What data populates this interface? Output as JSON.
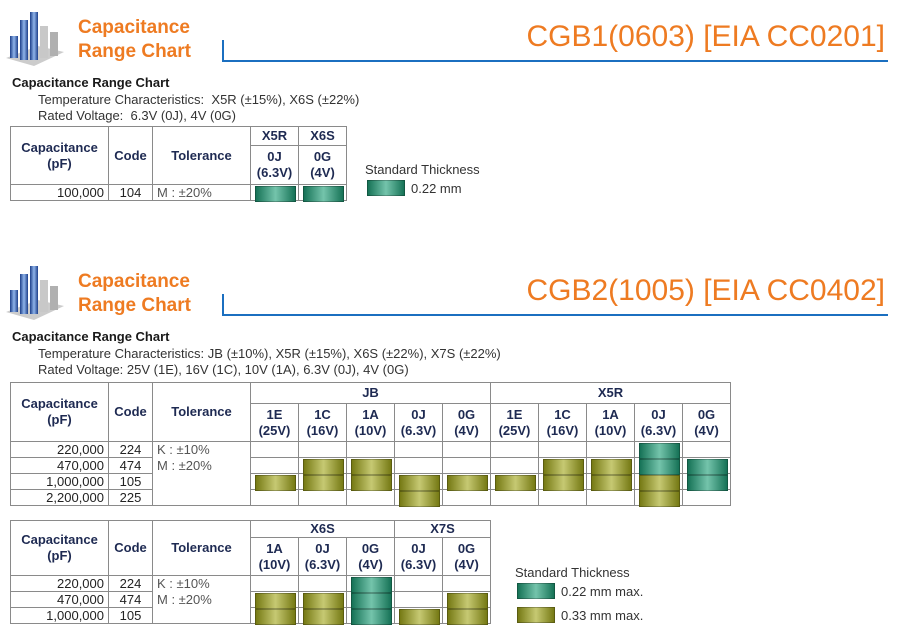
{
  "sections": [
    {
      "header": {
        "title": "Capacitance\nRange Chart",
        "part": "CGB1(0603) [EIA CC0201]"
      },
      "heading": "Capacitance Range Chart",
      "temperature": "Temperature Characteristics:  X5R (±15%), X6S (±22%)",
      "voltage": "Rated Voltage:  6.3V (0J), 4V (0G)",
      "tables": [
        {
          "headers": {
            "capacitance": "Capacitance\n(pF)",
            "code": "Code",
            "tolerance": "Tolerance"
          },
          "groups": [
            {
              "name": "X5R",
              "columns": [
                {
                  "code": "0J",
                  "voltage": "(6.3V)"
                }
              ]
            },
            {
              "name": "X6S",
              "columns": [
                {
                  "code": "0G",
                  "voltage": "(4V)"
                }
              ]
            }
          ],
          "tolerance": [
            "M : ±20%"
          ],
          "rows": [
            {
              "capacitance": "100,000",
              "code": "104",
              "cells": [
                0.22,
                0.22
              ]
            }
          ]
        }
      ],
      "legend": {
        "title": "Standard Thickness",
        "items": [
          {
            "label": "0.22 mm",
            "thickness": 0.22,
            "color": "#1f9f78"
          }
        ]
      }
    },
    {
      "header": {
        "title": "Capacitance\nRange Chart",
        "part": "CGB2(1005) [EIA CC0402]"
      },
      "heading": "Capacitance Range Chart",
      "temperature": "Temperature Characteristics: JB (±10%), X5R (±15%), X6S (±22%), X7S (±22%)",
      "voltage": "Rated Voltage: 25V (1E), 16V (1C), 10V (1A), 6.3V (0J), 4V (0G)",
      "tables": [
        {
          "headers": {
            "capacitance": "Capacitance\n(pF)",
            "code": "Code",
            "tolerance": "Tolerance"
          },
          "groups": [
            {
              "name": "JB",
              "columns": [
                {
                  "code": "1E",
                  "voltage": "(25V)"
                },
                {
                  "code": "1C",
                  "voltage": "(16V)"
                },
                {
                  "code": "1A",
                  "voltage": "(10V)"
                },
                {
                  "code": "0J",
                  "voltage": "(6.3V)"
                },
                {
                  "code": "0G",
                  "voltage": "(4V)"
                }
              ]
            },
            {
              "name": "X5R",
              "columns": [
                {
                  "code": "1E",
                  "voltage": "(25V)"
                },
                {
                  "code": "1C",
                  "voltage": "(16V)"
                },
                {
                  "code": "1A",
                  "voltage": "(10V)"
                },
                {
                  "code": "0J",
                  "voltage": "(6.3V)"
                },
                {
                  "code": "0G",
                  "voltage": "(4V)"
                }
              ]
            }
          ],
          "tolerance": [
            "K : ±10%",
            "M : ±20%"
          ],
          "rows": [
            {
              "capacitance": "220,000",
              "code": "224",
              "cells": [
                null,
                null,
                null,
                null,
                null,
                null,
                null,
                null,
                0.22,
                null
              ]
            },
            {
              "capacitance": "470,000",
              "code": "474",
              "cells": [
                null,
                0.33,
                0.33,
                null,
                null,
                null,
                0.33,
                0.33,
                0.22,
                0.22
              ]
            },
            {
              "capacitance": "1,000,000",
              "code": "105",
              "cells": [
                0.33,
                0.33,
                0.33,
                0.33,
                0.33,
                0.33,
                0.33,
                0.33,
                0.33,
                0.22
              ]
            },
            {
              "capacitance": "2,200,000",
              "code": "225",
              "cells": [
                null,
                null,
                null,
                0.33,
                null,
                null,
                null,
                null,
                0.33,
                null
              ]
            }
          ]
        },
        {
          "headers": {
            "capacitance": "Capacitance\n(pF)",
            "code": "Code",
            "tolerance": "Tolerance"
          },
          "groups": [
            {
              "name": "X6S",
              "columns": [
                {
                  "code": "1A",
                  "voltage": "(10V)"
                },
                {
                  "code": "0J",
                  "voltage": "(6.3V)"
                },
                {
                  "code": "0G",
                  "voltage": "(4V)"
                }
              ]
            },
            {
              "name": "X7S",
              "columns": [
                {
                  "code": "0J",
                  "voltage": "(6.3V)"
                },
                {
                  "code": "0G",
                  "voltage": "(4V)"
                }
              ]
            }
          ],
          "tolerance": [
            "K : ±10%",
            "M : ±20%"
          ],
          "rows": [
            {
              "capacitance": "220,000",
              "code": "224",
              "cells": [
                null,
                null,
                0.22,
                null,
                null
              ]
            },
            {
              "capacitance": "470,000",
              "code": "474",
              "cells": [
                0.33,
                0.33,
                0.22,
                null,
                0.33
              ]
            },
            {
              "capacitance": "1,000,000",
              "code": "105",
              "cells": [
                0.33,
                0.33,
                0.22,
                0.33,
                0.33
              ]
            }
          ]
        }
      ],
      "legend": {
        "title": "Standard Thickness",
        "items": [
          {
            "label": "0.22 mm max.",
            "thickness": 0.22,
            "color": "#1f9f78"
          },
          {
            "label": "0.33 mm max.",
            "thickness": 0.33,
            "color": "#a3a81c"
          }
        ]
      }
    }
  ]
}
